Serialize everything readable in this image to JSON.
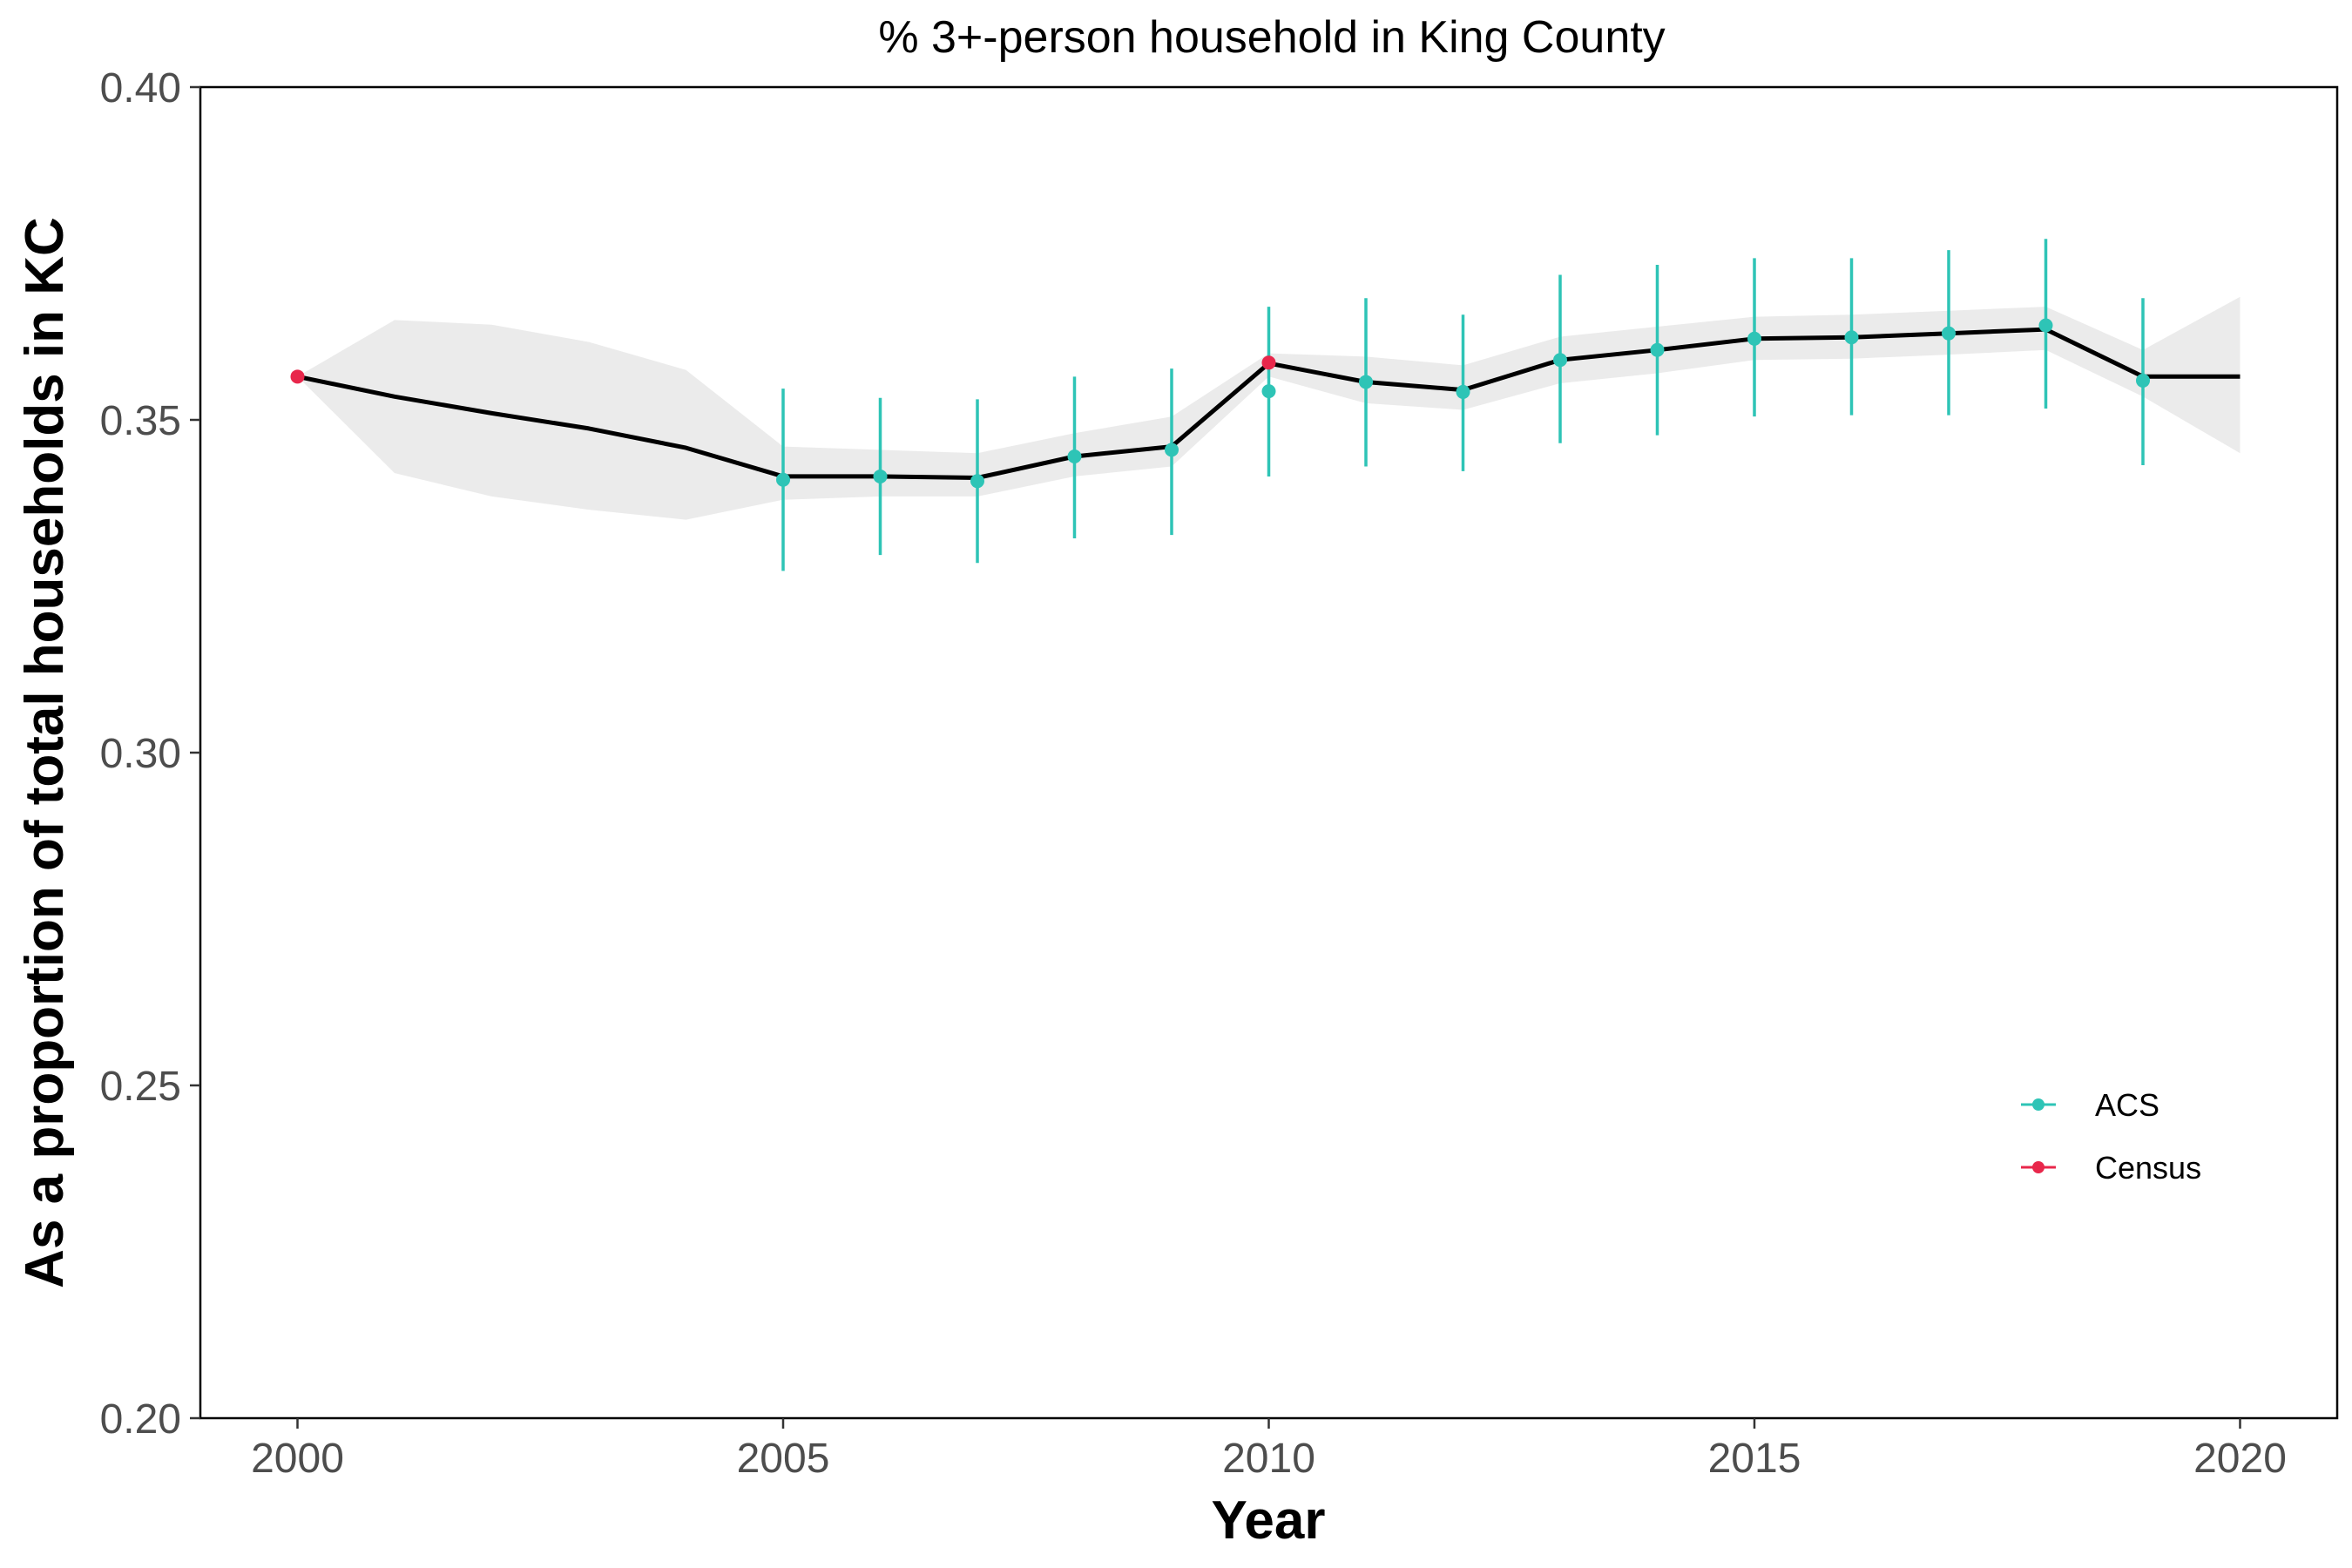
{
  "chart_data": {
    "type": "line",
    "title": "% 3+-person household in King County",
    "xlabel": "Year",
    "ylabel": "As a proportion of total households in KC",
    "xlim": [
      1999,
      2021
    ],
    "ylim": [
      0.2,
      0.4
    ],
    "x_ticks": [
      2000,
      2005,
      2010,
      2015,
      2020
    ],
    "y_ticks": [
      0.2,
      0.25,
      0.3,
      0.35,
      0.4
    ],
    "x_tick_labels": [
      "2000",
      "2005",
      "2010",
      "2015",
      "2020"
    ],
    "y_tick_labels": [
      "0.20",
      "0.25",
      "0.30",
      "0.35",
      "0.40"
    ],
    "grid": false,
    "legend_position": "bottom-right",
    "colors": {
      "acs": "#2ec4b6",
      "census": "#e8274b",
      "estimate_line": "#000000",
      "band": "#ebebeb"
    },
    "legend": [
      {
        "label": "ACS",
        "color": "#2ec4b6"
      },
      {
        "label": "Census",
        "color": "#e8274b"
      }
    ],
    "estimate": {
      "x": [
        2000,
        2001,
        2002,
        2003,
        2004,
        2005,
        2006,
        2007,
        2008,
        2009,
        2010,
        2011,
        2012,
        2013,
        2014,
        2015,
        2016,
        2017,
        2018,
        2019,
        2020
      ],
      "y": [
        0.3565,
        0.3535,
        0.351,
        0.3487,
        0.3458,
        0.3415,
        0.3415,
        0.3413,
        0.3445,
        0.346,
        0.3585,
        0.3557,
        0.3545,
        0.359,
        0.3605,
        0.3622,
        0.3624,
        0.363,
        0.3636,
        0.3565,
        0.3565
      ],
      "lower": [
        0.3565,
        0.342,
        0.3385,
        0.3365,
        0.335,
        0.338,
        0.3385,
        0.3385,
        0.3415,
        0.343,
        0.3565,
        0.3525,
        0.3515,
        0.3555,
        0.357,
        0.359,
        0.3592,
        0.3598,
        0.3605,
        0.3535,
        0.345
      ],
      "upper": [
        0.3565,
        0.365,
        0.3643,
        0.3617,
        0.3575,
        0.346,
        0.3455,
        0.345,
        0.348,
        0.3505,
        0.36,
        0.3595,
        0.3582,
        0.3625,
        0.364,
        0.3655,
        0.3658,
        0.3664,
        0.367,
        0.3605,
        0.3685
      ]
    },
    "series": [
      {
        "name": "ACS",
        "x": [
          2005,
          2006,
          2007,
          2008,
          2009,
          2010,
          2011,
          2012,
          2013,
          2014,
          2015,
          2016,
          2017,
          2018,
          2019
        ],
        "y": [
          0.341,
          0.3415,
          0.3408,
          0.3445,
          0.3455,
          0.3543,
          0.3557,
          0.3542,
          0.359,
          0.3605,
          0.3622,
          0.3624,
          0.363,
          0.3642,
          0.3559
        ],
        "lower": [
          0.3273,
          0.3297,
          0.3285,
          0.3322,
          0.3327,
          0.3415,
          0.343,
          0.3423,
          0.3465,
          0.3477,
          0.3505,
          0.3507,
          0.3507,
          0.3517,
          0.3432
        ],
        "upper": [
          0.3547,
          0.3533,
          0.3531,
          0.3565,
          0.3577,
          0.367,
          0.3683,
          0.3658,
          0.3718,
          0.3733,
          0.3743,
          0.3743,
          0.3755,
          0.3772,
          0.3683
        ]
      },
      {
        "name": "Census",
        "x": [
          2000,
          2010
        ],
        "y": [
          0.3565,
          0.3586
        ]
      }
    ]
  }
}
